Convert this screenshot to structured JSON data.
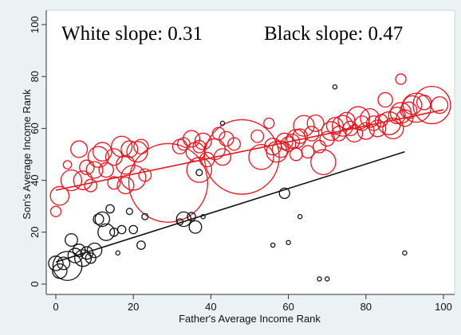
{
  "colors": {
    "background": "#eaf2f3",
    "plot_background": "#ffffff",
    "white_series": "#e8131b",
    "black_series": "#111111",
    "axis": "#333333"
  },
  "chart_data": {
    "type": "scatter",
    "xlabel": "Father's Average Income Rank",
    "ylabel": "Son's Average Income Rank",
    "xlim": [
      0,
      100
    ],
    "ylim": [
      0,
      100
    ],
    "xticks": [
      0,
      20,
      40,
      60,
      80,
      100
    ],
    "yticks": [
      0,
      20,
      40,
      60,
      80,
      100
    ],
    "grid": false,
    "annotations": {
      "white": "White slope: 0.31",
      "black": "Black slope: 0.47"
    },
    "bubble_size_encoding": "marker radius proportional to weight",
    "series": [
      {
        "color": "#e8131b",
        "fit": {
          "x": [
            0,
            100
          ],
          "y": [
            36.2,
            67.2
          ]
        },
        "points": [
          {
            "x": 0,
            "y": 28,
            "s": 2.5
          },
          {
            "x": 1,
            "y": 34,
            "s": 4.5
          },
          {
            "x": 3,
            "y": 46,
            "s": 2
          },
          {
            "x": 4,
            "y": 40,
            "s": 5
          },
          {
            "x": 6,
            "y": 52,
            "s": 4
          },
          {
            "x": 7,
            "y": 40,
            "s": 4.5
          },
          {
            "x": 8,
            "y": 45,
            "s": 3.5
          },
          {
            "x": 9,
            "y": 38,
            "s": 3
          },
          {
            "x": 10,
            "y": 44,
            "s": 4
          },
          {
            "x": 11,
            "y": 49,
            "s": 5
          },
          {
            "x": 12,
            "y": 51,
            "s": 4.5
          },
          {
            "x": 13,
            "y": 44,
            "s": 3.5
          },
          {
            "x": 15,
            "y": 39,
            "s": 3
          },
          {
            "x": 15,
            "y": 49,
            "s": 4
          },
          {
            "x": 17,
            "y": 53,
            "s": 5
          },
          {
            "x": 18,
            "y": 46,
            "s": 4.5
          },
          {
            "x": 18,
            "y": 38,
            "s": 4
          },
          {
            "x": 19,
            "y": 52,
            "s": 4
          },
          {
            "x": 20,
            "y": 41,
            "s": 6
          },
          {
            "x": 21,
            "y": 51,
            "s": 5
          },
          {
            "x": 22,
            "y": 53,
            "s": 3.5
          },
          {
            "x": 23,
            "y": 42,
            "s": 3
          },
          {
            "x": 29,
            "y": 39,
            "s": 19
          },
          {
            "x": 32,
            "y": 53,
            "s": 3.5
          },
          {
            "x": 33,
            "y": 54,
            "s": 3
          },
          {
            "x": 35,
            "y": 56,
            "s": 4
          },
          {
            "x": 36,
            "y": 51,
            "s": 4.5
          },
          {
            "x": 37,
            "y": 44,
            "s": 6
          },
          {
            "x": 37,
            "y": 53,
            "s": 3
          },
          {
            "x": 38,
            "y": 55,
            "s": 4
          },
          {
            "x": 39,
            "y": 48,
            "s": 3.5
          },
          {
            "x": 41,
            "y": 52,
            "s": 5
          },
          {
            "x": 42,
            "y": 58,
            "s": 3
          },
          {
            "x": 43,
            "y": 49,
            "s": 4
          },
          {
            "x": 44,
            "y": 56,
            "s": 3.5
          },
          {
            "x": 46,
            "y": 54,
            "s": 3
          },
          {
            "x": 48,
            "y": 49,
            "s": 18
          },
          {
            "x": 52,
            "y": 57,
            "s": 3
          },
          {
            "x": 53,
            "y": 49,
            "s": 6
          },
          {
            "x": 55,
            "y": 62,
            "s": 2.5
          },
          {
            "x": 56,
            "y": 53,
            "s": 4
          },
          {
            "x": 57,
            "y": 51,
            "s": 5
          },
          {
            "x": 58,
            "y": 52,
            "s": 4
          },
          {
            "x": 59,
            "y": 55,
            "s": 4
          },
          {
            "x": 60,
            "y": 54,
            "s": 3.5
          },
          {
            "x": 61,
            "y": 55,
            "s": 3.5
          },
          {
            "x": 62,
            "y": 56,
            "s": 4.5
          },
          {
            "x": 62,
            "y": 50,
            "s": 3
          },
          {
            "x": 63,
            "y": 57,
            "s": 3.5
          },
          {
            "x": 64,
            "y": 61,
            "s": 5
          },
          {
            "x": 65,
            "y": 51,
            "s": 3
          },
          {
            "x": 66,
            "y": 58,
            "s": 3.5
          },
          {
            "x": 67,
            "y": 62,
            "s": 4
          },
          {
            "x": 68,
            "y": 53,
            "s": 3
          },
          {
            "x": 69,
            "y": 47,
            "s": 6
          },
          {
            "x": 70,
            "y": 56,
            "s": 3.5
          },
          {
            "x": 71,
            "y": 59,
            "s": 4.5
          },
          {
            "x": 72,
            "y": 61,
            "s": 4
          },
          {
            "x": 73,
            "y": 58,
            "s": 3.5
          },
          {
            "x": 74,
            "y": 61,
            "s": 5
          },
          {
            "x": 75,
            "y": 63,
            "s": 4
          },
          {
            "x": 76,
            "y": 60,
            "s": 3.5
          },
          {
            "x": 77,
            "y": 58,
            "s": 4
          },
          {
            "x": 78,
            "y": 64,
            "s": 5.5
          },
          {
            "x": 79,
            "y": 62,
            "s": 3.5
          },
          {
            "x": 80,
            "y": 59,
            "s": 4
          },
          {
            "x": 81,
            "y": 64,
            "s": 4.5
          },
          {
            "x": 82,
            "y": 62,
            "s": 3.5
          },
          {
            "x": 83,
            "y": 60,
            "s": 4
          },
          {
            "x": 84,
            "y": 63,
            "s": 3
          },
          {
            "x": 85,
            "y": 71,
            "s": 3.5
          },
          {
            "x": 86,
            "y": 62,
            "s": 5.5
          },
          {
            "x": 87,
            "y": 60,
            "s": 5
          },
          {
            "x": 88,
            "y": 65,
            "s": 4
          },
          {
            "x": 89,
            "y": 79,
            "s": 2.5
          },
          {
            "x": 89,
            "y": 66,
            "s": 5
          },
          {
            "x": 90,
            "y": 64,
            "s": 4
          },
          {
            "x": 91,
            "y": 67,
            "s": 4
          },
          {
            "x": 92,
            "y": 69,
            "s": 4.5
          },
          {
            "x": 93,
            "y": 68,
            "s": 7
          },
          {
            "x": 95,
            "y": 70,
            "s": 3.5
          },
          {
            "x": 97,
            "y": 69,
            "s": 9
          },
          {
            "x": 99,
            "y": 69,
            "s": 4
          }
        ]
      },
      {
        "color": "#111111",
        "fit": {
          "x": [
            0,
            90
          ],
          "y": [
            8.5,
            51
          ]
        },
        "points": [
          {
            "x": 0,
            "y": 8,
            "s": 3.5
          },
          {
            "x": 1,
            "y": 5,
            "s": 3.5
          },
          {
            "x": 2,
            "y": 8,
            "s": 3
          },
          {
            "x": 3,
            "y": 7,
            "s": 7
          },
          {
            "x": 4,
            "y": 17,
            "s": 3
          },
          {
            "x": 5,
            "y": 11,
            "s": 3.5
          },
          {
            "x": 6,
            "y": 13,
            "s": 3
          },
          {
            "x": 7,
            "y": 10,
            "s": 4
          },
          {
            "x": 8,
            "y": 12,
            "s": 3
          },
          {
            "x": 9,
            "y": 10,
            "s": 2.5
          },
          {
            "x": 10,
            "y": 13,
            "s": 3.5
          },
          {
            "x": 11,
            "y": 25,
            "s": 2.5
          },
          {
            "x": 12,
            "y": 25,
            "s": 3.5
          },
          {
            "x": 13,
            "y": 20,
            "s": 4
          },
          {
            "x": 14,
            "y": 29,
            "s": 2
          },
          {
            "x": 15,
            "y": 20,
            "s": 2
          },
          {
            "x": 16,
            "y": 12,
            "s": 1
          },
          {
            "x": 17,
            "y": 21,
            "s": 2
          },
          {
            "x": 19,
            "y": 28,
            "s": 1.5
          },
          {
            "x": 20,
            "y": 21,
            "s": 2
          },
          {
            "x": 22,
            "y": 15,
            "s": 2
          },
          {
            "x": 23,
            "y": 26,
            "s": 1.5
          },
          {
            "x": 32,
            "y": 24,
            "s": 1.5
          },
          {
            "x": 33,
            "y": 25,
            "s": 3.5
          },
          {
            "x": 35,
            "y": 26,
            "s": 2
          },
          {
            "x": 36,
            "y": 22,
            "s": 3
          },
          {
            "x": 37,
            "y": 43,
            "s": 1.5
          },
          {
            "x": 38,
            "y": 26,
            "s": 1
          },
          {
            "x": 43,
            "y": 62,
            "s": 1
          },
          {
            "x": 56,
            "y": 15,
            "s": 1
          },
          {
            "x": 59,
            "y": 35,
            "s": 2.5
          },
          {
            "x": 60,
            "y": 16,
            "s": 1
          },
          {
            "x": 63,
            "y": 26,
            "s": 1
          },
          {
            "x": 68,
            "y": 2,
            "s": 1
          },
          {
            "x": 70,
            "y": 2,
            "s": 1
          },
          {
            "x": 72,
            "y": 76,
            "s": 1
          },
          {
            "x": 90,
            "y": 12,
            "s": 1
          }
        ]
      }
    ]
  }
}
